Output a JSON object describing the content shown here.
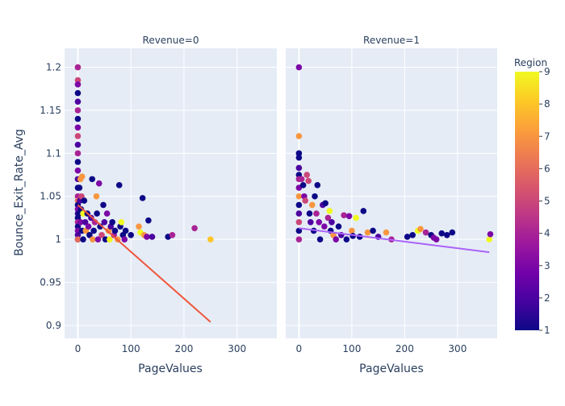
{
  "chart_data": {
    "type": "scatter",
    "facet_by": "Revenue",
    "ylabel": "Bounce_Exit_Rate_Avg",
    "xlabel": "PageValues",
    "xlim": [
      -25,
      375
    ],
    "ylim": [
      0.885,
      1.222
    ],
    "x_ticks": [
      0,
      100,
      200,
      300
    ],
    "x_tick_labels": [
      "0",
      "100",
      "200",
      "300"
    ],
    "y_ticks": [
      0.9,
      0.95,
      1.0,
      1.05,
      1.1,
      1.15,
      1.2
    ],
    "y_tick_labels": [
      "0.9",
      "0.95",
      "1",
      "1.05",
      "1.1",
      "1.15",
      "1.2"
    ],
    "colorbar": {
      "title": "Region",
      "range": [
        1,
        9
      ],
      "tick_labels": [
        "1",
        "2",
        "3",
        "4",
        "5",
        "6",
        "7",
        "8",
        "9"
      ],
      "colorscale": [
        "#0d0887",
        "#46039f",
        "#7201a8",
        "#9c179e",
        "#bd3786",
        "#d8576b",
        "#ed7953",
        "#fb9f3a",
        "#fdca26",
        "#f0f921"
      ]
    },
    "panels": [
      {
        "title": "Revenue=0",
        "trendline": {
          "color": "#ef553b",
          "x": [
            0,
            250
          ],
          "y": [
            1.04,
            0.904
          ]
        },
        "points": [
          [
            0,
            1.2,
            7
          ],
          [
            0,
            1.2,
            4
          ],
          [
            0,
            1.185,
            5
          ],
          [
            0,
            1.18,
            3
          ],
          [
            0,
            1.17,
            1
          ],
          [
            0,
            1.16,
            2
          ],
          [
            0,
            1.15,
            4
          ],
          [
            0,
            1.14,
            1
          ],
          [
            0,
            1.13,
            3
          ],
          [
            0,
            1.12,
            5
          ],
          [
            0,
            1.11,
            2
          ],
          [
            0,
            1.1,
            4
          ],
          [
            0,
            1.09,
            1
          ],
          [
            0,
            1.08,
            3
          ],
          [
            0,
            1.07,
            2
          ],
          [
            0,
            1.06,
            1
          ],
          [
            0,
            1.05,
            4
          ],
          [
            0,
            1.045,
            6
          ],
          [
            0,
            1.04,
            1
          ],
          [
            0,
            1.035,
            3
          ],
          [
            0,
            1.03,
            2
          ],
          [
            0,
            1.025,
            1
          ],
          [
            0,
            1.02,
            4
          ],
          [
            0,
            1.015,
            1
          ],
          [
            0,
            1.01,
            3
          ],
          [
            0,
            1.005,
            2
          ],
          [
            0,
            1.0,
            1
          ],
          [
            0,
            1.0,
            6
          ],
          [
            2,
            1.03,
            1
          ],
          [
            3,
            1.06,
            1
          ],
          [
            4,
            1.045,
            2
          ],
          [
            5,
            1.07,
            7
          ],
          [
            5,
            1.02,
            3
          ],
          [
            6,
            1.035,
            1
          ],
          [
            7,
            1.05,
            5
          ],
          [
            8,
            1.073,
            7
          ],
          [
            8,
            1.01,
            1
          ],
          [
            10,
            1.03,
            9
          ],
          [
            10,
            1.0,
            1
          ],
          [
            12,
            1.045,
            1
          ],
          [
            14,
            1.02,
            2
          ],
          [
            15,
            1.01,
            7
          ],
          [
            18,
            1.03,
            1
          ],
          [
            20,
            1.015,
            3
          ],
          [
            22,
            1.005,
            1
          ],
          [
            25,
            1.025,
            2
          ],
          [
            27,
            1.07,
            1
          ],
          [
            28,
            1.0,
            7
          ],
          [
            30,
            1.01,
            1
          ],
          [
            32,
            1.02,
            4
          ],
          [
            35,
            1.05,
            7
          ],
          [
            36,
            1.03,
            1
          ],
          [
            38,
            1.0,
            3
          ],
          [
            40,
            1.065,
            3
          ],
          [
            42,
            1.015,
            1
          ],
          [
            45,
            1.005,
            5
          ],
          [
            48,
            1.04,
            1
          ],
          [
            50,
            1.02,
            2
          ],
          [
            52,
            1.0,
            1
          ],
          [
            55,
            1.03,
            3
          ],
          [
            58,
            1.01,
            7
          ],
          [
            60,
            1.0,
            9
          ],
          [
            62,
            1.015,
            2
          ],
          [
            65,
            1.02,
            1
          ],
          [
            68,
            1.005,
            4
          ],
          [
            70,
            1.01,
            1
          ],
          [
            75,
            1.0,
            7
          ],
          [
            78,
            1.063,
            1
          ],
          [
            80,
            1.015,
            1
          ],
          [
            82,
            1.02,
            9
          ],
          [
            85,
            1.005,
            1
          ],
          [
            88,
            1.0,
            3
          ],
          [
            90,
            1.01,
            1
          ],
          [
            100,
            1.005,
            1
          ],
          [
            115,
            1.015,
            7
          ],
          [
            118,
            1.008,
            9
          ],
          [
            122,
            1.048,
            1
          ],
          [
            125,
            1.005,
            7
          ],
          [
            130,
            1.003,
            3
          ],
          [
            133,
            1.022,
            1
          ],
          [
            140,
            1.003,
            2
          ],
          [
            170,
            1.003,
            1
          ],
          [
            178,
            1.005,
            4
          ],
          [
            220,
            1.013,
            4
          ],
          [
            250,
            1.0,
            8
          ]
        ]
      },
      {
        "title": "Revenue=1",
        "trendline": {
          "color": "#ab63fa",
          "x": [
            0,
            360
          ],
          "y": [
            1.013,
            0.985
          ]
        },
        "points": [
          [
            0,
            1.2,
            3
          ],
          [
            0,
            1.12,
            7
          ],
          [
            0,
            1.1,
            1
          ],
          [
            0,
            1.095,
            1
          ],
          [
            0,
            1.083,
            2
          ],
          [
            0,
            1.075,
            1
          ],
          [
            0,
            1.07,
            4
          ],
          [
            0,
            1.06,
            3
          ],
          [
            0,
            1.05,
            7
          ],
          [
            0,
            1.04,
            1
          ],
          [
            0,
            1.03,
            2
          ],
          [
            0,
            1.02,
            5
          ],
          [
            0,
            1.01,
            1
          ],
          [
            0,
            1.0,
            4
          ],
          [
            5,
            1.07,
            4
          ],
          [
            8,
            1.063,
            1
          ],
          [
            10,
            1.05,
            3
          ],
          [
            12,
            1.045,
            5
          ],
          [
            15,
            1.075,
            5
          ],
          [
            18,
            1.068,
            5
          ],
          [
            20,
            1.03,
            1
          ],
          [
            22,
            1.02,
            2
          ],
          [
            25,
            1.04,
            7
          ],
          [
            28,
            1.01,
            1
          ],
          [
            30,
            1.05,
            1
          ],
          [
            33,
            1.03,
            4
          ],
          [
            35,
            1.063,
            1
          ],
          [
            38,
            1.02,
            3
          ],
          [
            40,
            1.0,
            1
          ],
          [
            45,
            1.04,
            2
          ],
          [
            48,
            1.015,
            3
          ],
          [
            50,
            1.042,
            1
          ],
          [
            55,
            1.025,
            4
          ],
          [
            58,
            1.033,
            9
          ],
          [
            60,
            1.01,
            1
          ],
          [
            62,
            1.02,
            2
          ],
          [
            65,
            1.005,
            7
          ],
          [
            70,
            1.0,
            3
          ],
          [
            75,
            1.015,
            1
          ],
          [
            80,
            1.005,
            2
          ],
          [
            85,
            1.028,
            4
          ],
          [
            90,
            1.0,
            1
          ],
          [
            95,
            1.027,
            3
          ],
          [
            100,
            1.01,
            7
          ],
          [
            102,
            1.004,
            1
          ],
          [
            108,
            1.025,
            9
          ],
          [
            115,
            1.003,
            1
          ],
          [
            122,
            1.033,
            1
          ],
          [
            130,
            1.008,
            7
          ],
          [
            140,
            1.01,
            1
          ],
          [
            150,
            1.003,
            2
          ],
          [
            165,
            1.008,
            7
          ],
          [
            175,
            1.0,
            4
          ],
          [
            205,
            1.003,
            1
          ],
          [
            215,
            1.005,
            1
          ],
          [
            225,
            1.01,
            9
          ],
          [
            230,
            1.012,
            7
          ],
          [
            240,
            1.008,
            4
          ],
          [
            250,
            1.005,
            1
          ],
          [
            255,
            1.002,
            3
          ],
          [
            260,
            1.0,
            3
          ],
          [
            270,
            1.007,
            1
          ],
          [
            280,
            1.005,
            1
          ],
          [
            290,
            1.008,
            1
          ],
          [
            360,
            1.0,
            9
          ],
          [
            362,
            1.006,
            3
          ]
        ]
      }
    ]
  }
}
